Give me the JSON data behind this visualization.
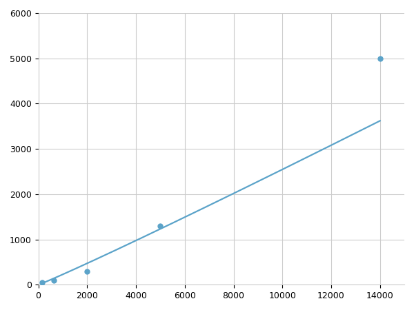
{
  "x": [
    156,
    625,
    2000,
    5000,
    14000
  ],
  "y": [
    50,
    100,
    300,
    1300,
    5000
  ],
  "line_color": "#5ba3c9",
  "marker_color": "#5ba3c9",
  "marker_size": 5,
  "line_width": 1.6,
  "xlim": [
    0,
    15000
  ],
  "ylim": [
    0,
    6000
  ],
  "xticks": [
    0,
    2000,
    4000,
    6000,
    8000,
    10000,
    12000,
    14000
  ],
  "yticks": [
    0,
    1000,
    2000,
    3000,
    4000,
    5000,
    6000
  ],
  "grid": true,
  "background_color": "#ffffff",
  "fig_bg_color": "#ffffff"
}
